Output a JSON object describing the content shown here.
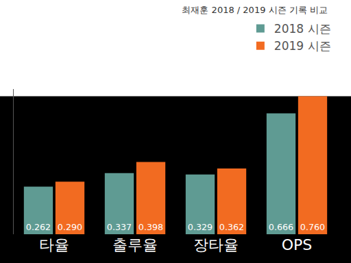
{
  "chart_data": {
    "type": "bar",
    "title": "최재훈 2018 / 2019 시즌 기록 비교",
    "categories": [
      "타율",
      "출루율",
      "장타율",
      "OPS"
    ],
    "series": [
      {
        "name": "2018 시즌",
        "color": "#5f9b93",
        "values": [
          0.262,
          0.337,
          0.329,
          0.666
        ],
        "value_labels": [
          "0.262",
          "0.337",
          "0.329",
          "0.666"
        ]
      },
      {
        "name": "2019 시즌",
        "color": "#f26b21",
        "values": [
          0.29,
          0.398,
          0.362,
          0.76
        ],
        "value_labels": [
          "0.290",
          "0.398",
          "0.362",
          "0.760"
        ]
      }
    ],
    "ylim": [
      0,
      0.8
    ],
    "data_labels": true,
    "tick_labels": "x",
    "legend": "top right"
  }
}
